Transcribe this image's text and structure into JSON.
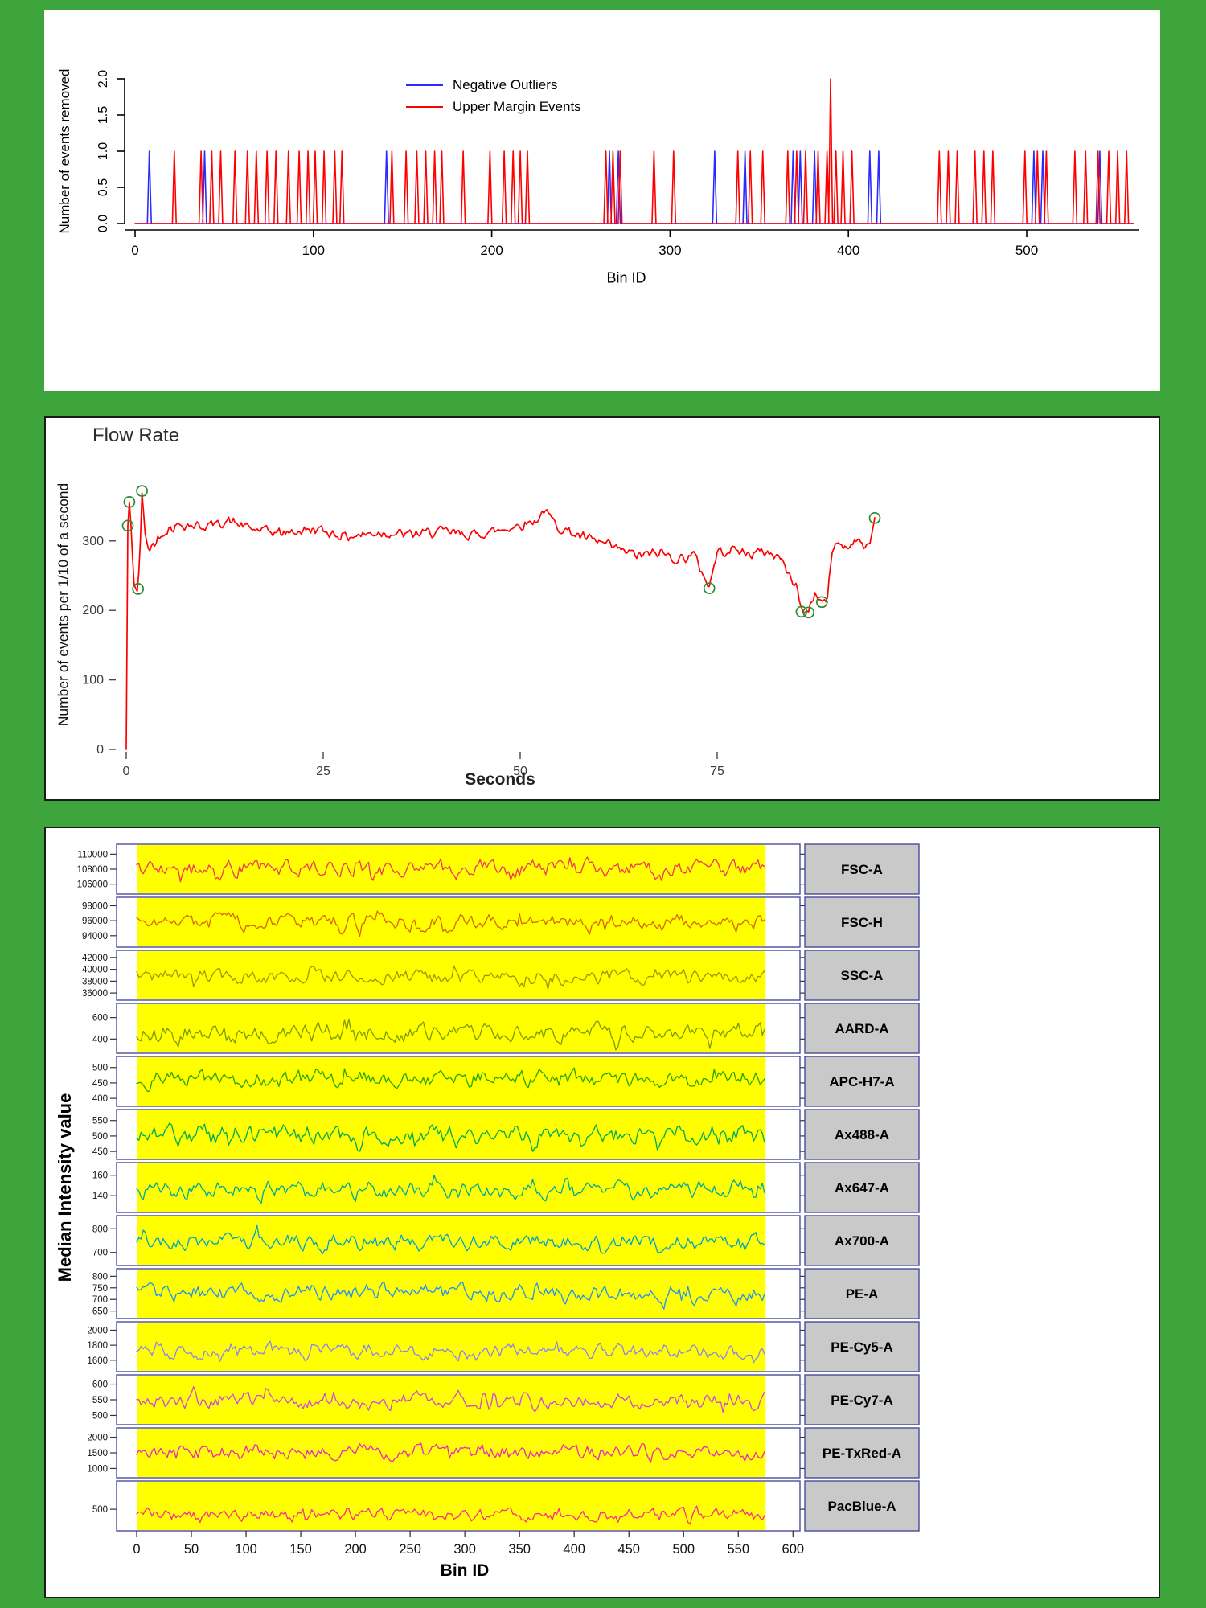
{
  "page": {
    "background_color": "#3da53c",
    "panel_color": "#ffffff"
  },
  "chart_data": [
    {
      "id": "events-removed",
      "type": "line",
      "title": "",
      "xlabel": "Bin ID",
      "ylabel": "Number of events removed",
      "xlim": [
        0,
        565
      ],
      "ylim": [
        0,
        2
      ],
      "xticks": [
        0,
        100,
        200,
        300,
        400,
        500
      ],
      "ytick_values": [
        0,
        0.5,
        1,
        1.5,
        2
      ],
      "ytick_labels": [
        "0.0",
        "0.5",
        "1.0",
        "1.5",
        "2.0"
      ],
      "legend": [
        {
          "label": "Negative Outliers",
          "color": "#2a2aff"
        },
        {
          "label": "Upper Margin Events",
          "color": "#ff0000"
        }
      ],
      "series": [
        {
          "name": "Negative Outliers",
          "color": "#2a2aff",
          "spike_height": 1,
          "spike_bins": [
            8,
            39,
            141,
            266,
            271,
            325,
            342,
            369,
            373,
            381,
            412,
            417,
            504,
            509,
            541
          ]
        },
        {
          "name": "Upper Margin Events",
          "color": "#ff0000",
          "spike_height": 1,
          "spike_bins": [
            22,
            37,
            43,
            48,
            56,
            63,
            68,
            74,
            79,
            86,
            92,
            97,
            101,
            106,
            112,
            116,
            144,
            152,
            158,
            163,
            168,
            172,
            184,
            199,
            207,
            212,
            216,
            220,
            264,
            268,
            272,
            291,
            302,
            338,
            345,
            352,
            366,
            371,
            376,
            383,
            388,
            393,
            397,
            402,
            451,
            456,
            461,
            471,
            476,
            481,
            499,
            506,
            511,
            527,
            533,
            540,
            546,
            551,
            556
          ],
          "tall_spike": {
            "bin": 390,
            "value": 2
          }
        }
      ]
    },
    {
      "id": "flow-rate",
      "type": "line",
      "title": "Flow Rate",
      "xlabel": "Seconds",
      "ylabel": "Number of events per 1/10 of a second",
      "xticks": [
        0,
        25,
        50,
        75
      ],
      "yticks": [
        0,
        100,
        200,
        300
      ],
      "xlim": [
        0,
        95
      ],
      "ylim": [
        0,
        380
      ],
      "line_color": "#ff0000",
      "anomaly_marker_color": "#2d8a2d",
      "keypoints": [
        [
          0,
          0
        ],
        [
          0.2,
          322
        ],
        [
          0.4,
          356
        ],
        [
          0.7,
          300
        ],
        [
          1.0,
          240
        ],
        [
          1.4,
          228
        ],
        [
          1.7,
          262
        ],
        [
          2.0,
          372
        ],
        [
          2.4,
          305
        ],
        [
          3,
          288
        ],
        [
          4,
          303
        ],
        [
          5,
          316
        ],
        [
          7,
          324
        ],
        [
          10,
          321
        ],
        [
          13,
          329
        ],
        [
          16,
          317
        ],
        [
          20,
          311
        ],
        [
          24,
          317
        ],
        [
          28,
          306
        ],
        [
          32,
          312
        ],
        [
          36,
          309
        ],
        [
          40,
          314
        ],
        [
          44,
          308
        ],
        [
          48,
          317
        ],
        [
          52,
          329
        ],
        [
          53,
          344
        ],
        [
          55,
          319
        ],
        [
          58,
          305
        ],
        [
          60,
          298
        ],
        [
          63,
          286
        ],
        [
          65,
          279
        ],
        [
          68,
          283
        ],
        [
          70,
          273
        ],
        [
          72,
          281
        ],
        [
          74,
          234
        ],
        [
          75,
          284
        ],
        [
          77,
          288
        ],
        [
          79,
          281
        ],
        [
          81,
          285
        ],
        [
          83,
          277
        ],
        [
          84,
          252
        ],
        [
          85,
          238
        ],
        [
          85.7,
          199
        ],
        [
          86.5,
          198
        ],
        [
          87.3,
          224
        ],
        [
          88.3,
          212
        ],
        [
          89,
          216
        ],
        [
          89.6,
          288
        ],
        [
          90.5,
          299
        ],
        [
          91.5,
          289
        ],
        [
          92.5,
          304
        ],
        [
          93.5,
          291
        ],
        [
          94.4,
          297
        ],
        [
          95,
          333
        ]
      ],
      "anomalies": [
        [
          0.2,
          322
        ],
        [
          0.4,
          356
        ],
        [
          1.5,
          231
        ],
        [
          2.0,
          372
        ],
        [
          74,
          232
        ],
        [
          85.7,
          198
        ],
        [
          86.6,
          197
        ],
        [
          88.3,
          212
        ],
        [
          95,
          333
        ]
      ]
    },
    {
      "id": "median-intensity",
      "type": "line-facets",
      "xlabel": "Bin ID",
      "ylabel": "Median Intensity value",
      "xticks": [
        0,
        50,
        100,
        150,
        200,
        250,
        300,
        350,
        400,
        450,
        500,
        550,
        600
      ],
      "bin_range": [
        0,
        575
      ],
      "panel_background": "#ffff00",
      "strip_background": "#c9c9c9",
      "facet_border_color": "#4a4a9c",
      "facets": [
        {
          "label": "FSC-A",
          "color": "#ef3b57",
          "yticks": [
            106000,
            108000,
            110000
          ],
          "ylim": [
            105000,
            111000
          ],
          "baseline": 108100,
          "amplitude": 1150
        },
        {
          "label": "FSC-H",
          "color": "#d66b00",
          "yticks": [
            94000,
            96000,
            98000
          ],
          "ylim": [
            92800,
            98800
          ],
          "baseline": 95800,
          "amplitude": 1050
        },
        {
          "label": "SSC-A",
          "color": "#a89500",
          "yticks": [
            36000,
            38000,
            40000,
            42000
          ],
          "ylim": [
            35200,
            42800
          ],
          "baseline": 38700,
          "amplitude": 1300
        },
        {
          "label": "AARD-A",
          "color": "#7f9c00",
          "yticks": [
            400,
            600
          ],
          "ylim": [
            290,
            710
          ],
          "baseline": 455,
          "amplitude": 85
        },
        {
          "label": "APC-H7-A",
          "color": "#2aa600",
          "yticks": [
            400,
            450,
            500
          ],
          "ylim": [
            382,
            528
          ],
          "baseline": 462,
          "amplitude": 29
        },
        {
          "label": "Ax488-A",
          "color": "#00ab55",
          "yticks": [
            450,
            500,
            550
          ],
          "ylim": [
            432,
            578
          ],
          "baseline": 502,
          "amplitude": 30
        },
        {
          "label": "Ax647-A",
          "color": "#00ab9a",
          "yticks": [
            140,
            160
          ],
          "ylim": [
            126,
            170
          ],
          "baseline": 145,
          "amplitude": 8.5
        },
        {
          "label": "Ax700-A",
          "color": "#00a3cc",
          "yticks": [
            700,
            800
          ],
          "ylim": [
            655,
            845
          ],
          "baseline": 747,
          "amplitude": 36
        },
        {
          "label": "PE-A",
          "color": "#2293f5",
          "yticks": [
            650,
            700,
            750,
            800
          ],
          "ylim": [
            628,
            822
          ],
          "baseline": 728,
          "amplitude": 38
        },
        {
          "label": "PE-Cy5-A",
          "color": "#8c86f0",
          "yticks": [
            1600,
            1800,
            2000
          ],
          "ylim": [
            1480,
            2080
          ],
          "baseline": 1710,
          "amplitude": 105
        },
        {
          "label": "PE-Cy7-A",
          "color": "#cc4ddd",
          "yticks": [
            500,
            550,
            600
          ],
          "ylim": [
            478,
            622
          ],
          "baseline": 546,
          "amplitude": 27
        },
        {
          "label": "PE-TxRed-A",
          "color": "#ed2bbf",
          "yticks": [
            1000,
            1500,
            2000
          ],
          "ylim": [
            780,
            2220
          ],
          "baseline": 1500,
          "amplitude": 250
        },
        {
          "label": "PacBlue-A",
          "color": "#fb2f96",
          "yticks": [
            500
          ],
          "ylim": [
            210,
            890
          ],
          "baseline": 420,
          "amplitude": 100
        }
      ]
    }
  ]
}
